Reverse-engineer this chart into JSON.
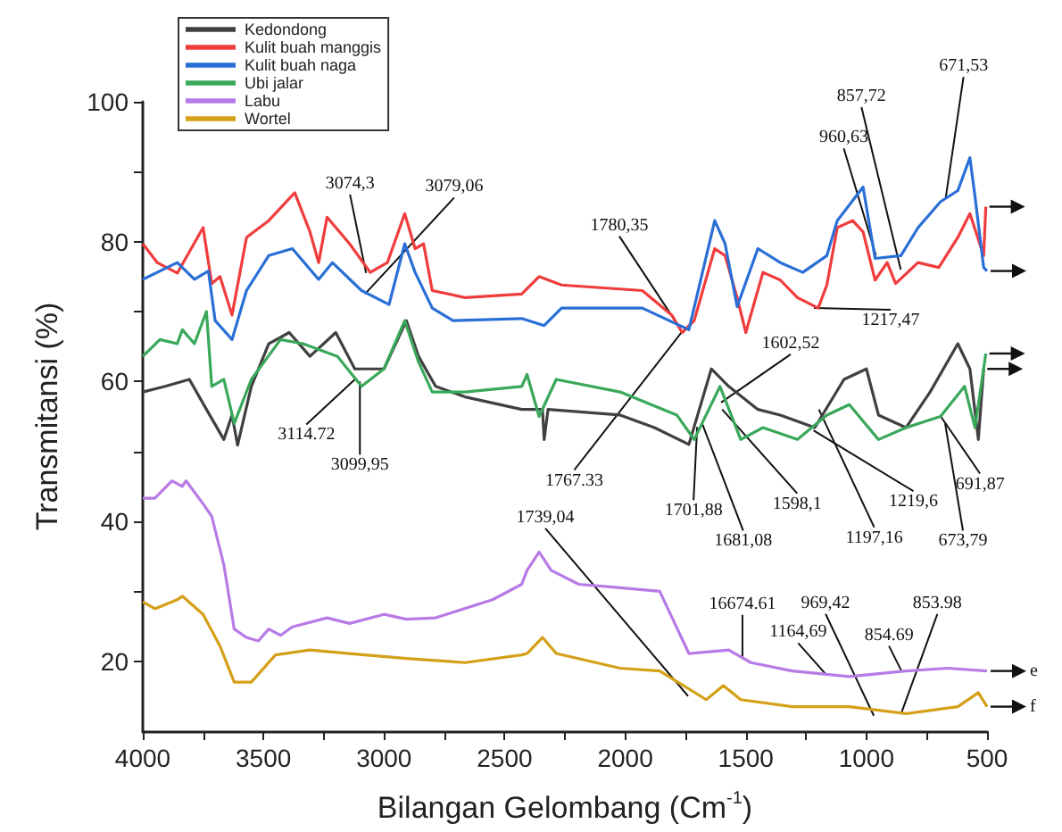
{
  "chart_data": {
    "type": "line",
    "xlabel": "Bilangan Gelombang (Cm$^{-1}$)",
    "ylabel": "Transmitansi (%)",
    "xlim": [
      4000,
      500
    ],
    "xticks": [
      4000,
      {
        "value": 3750,
        "label": null
      },
      3500,
      {
        "value": 3250,
        "label": null
      },
      3000,
      {
        "value": 2750,
        "label": null
      },
      2500,
      {
        "value": 2250,
        "label": null
      },
      2000,
      {
        "value": 1750,
        "label": null
      },
      1500,
      {
        "value": 1250,
        "label": null
      },
      1000,
      {
        "value": 750,
        "label": null
      },
      500
    ],
    "ylim": [
      10,
      100
    ],
    "yticks": [
      20,
      {
        "value": 30,
        "label": null
      },
      40,
      {
        "value": 50,
        "label": null
      },
      60,
      {
        "value": 70,
        "label": null
      },
      80,
      {
        "value": 90,
        "label": null
      },
      100
    ],
    "grid": false,
    "legend": "top left",
    "marker": "none",
    "line_style": "solid",
    "series": [
      {
        "name": "Kedondong",
        "color": "#404040",
        "x": [
          4000,
          3907,
          3807,
          3736,
          3664,
          3630,
          3607,
          3550,
          3478,
          3393,
          3307,
          3200,
          3121,
          3000,
          2907,
          2857,
          2786,
          2664,
          2429,
          2343,
          2336,
          2320,
          2021,
          1879,
          1736,
          1643,
          1571,
          1450,
          1357,
          1214,
          1093,
          1000,
          950,
          836,
          736,
          621,
          571,
          536,
          514
        ],
        "values": [
          58.5,
          59.3,
          60.3,
          56,
          51.7,
          55.2,
          50.9,
          59.3,
          65.4,
          67,
          63.6,
          67,
          61.8,
          61.8,
          68.7,
          63.6,
          59.3,
          57.8,
          56,
          56,
          51.7,
          56,
          55.2,
          53.4,
          51,
          61.8,
          59.3,
          56,
          55.2,
          53.4,
          60.3,
          61.8,
          55.2,
          53.4,
          58.5,
          65.4,
          61.8,
          51.7,
          61.8
        ]
      },
      {
        "name": "Kulit buah manggis",
        "color": "#f03c3c",
        "x": [
          4000,
          3940,
          3857,
          3750,
          3714,
          3680,
          3630,
          3570,
          3478,
          3370,
          3307,
          3271,
          3236,
          3143,
          3057,
          2986,
          2914,
          2871,
          2836,
          2800,
          2664,
          2429,
          2357,
          2264,
          1929,
          1807,
          1764,
          1714,
          1629,
          1586,
          1536,
          1500,
          1429,
          1357,
          1286,
          1200,
          1164,
          1121,
          1057,
          1014,
          964,
          914,
          879,
          786,
          700,
          621,
          571,
          514,
          505
        ],
        "values": [
          79.7,
          77,
          75.5,
          82,
          74,
          75,
          69.5,
          80.6,
          83,
          87,
          81.4,
          77,
          83.5,
          79.7,
          75.6,
          77,
          84,
          79,
          79.7,
          73,
          72,
          72.5,
          75,
          73.8,
          73,
          69.5,
          67,
          68.7,
          79,
          78,
          72,
          67,
          75.6,
          74.5,
          72,
          70.5,
          73.8,
          82,
          83,
          81.4,
          74.5,
          77,
          74,
          77,
          76.3,
          80.6,
          84,
          78,
          85
        ]
      },
      {
        "name": "Kulit buah naga",
        "color": "#2a6fd6",
        "x": [
          4000,
          3857,
          3786,
          3728,
          3700,
          3630,
          3570,
          3478,
          3380,
          3271,
          3214,
          3093,
          2979,
          2914,
          2871,
          2800,
          2714,
          2429,
          2336,
          2264,
          1929,
          1786,
          1736,
          1629,
          1586,
          1536,
          1450,
          1357,
          1264,
          1164,
          1121,
          1014,
          964,
          857,
          786,
          693,
          621,
          571,
          550,
          514,
          500
        ],
        "values": [
          74.6,
          77,
          74.6,
          75.8,
          68.7,
          66,
          73,
          78,
          79,
          74.6,
          77,
          73,
          71,
          79.7,
          75.6,
          70.5,
          68.7,
          69,
          68,
          70.5,
          70.5,
          68.2,
          67.4,
          83,
          79.7,
          70.7,
          79,
          77,
          75.6,
          78,
          83,
          87.8,
          77.6,
          78,
          82,
          85.7,
          87.3,
          92,
          86.5,
          76.3,
          75.8
        ]
      },
      {
        "name": "Ubi jalar",
        "color": "#3aa85a",
        "x": [
          4000,
          3929,
          3857,
          3836,
          3786,
          3736,
          3714,
          3664,
          3621,
          3550,
          3429,
          3336,
          3193,
          3093,
          3000,
          2914,
          2857,
          2800,
          2664,
          2429,
          2407,
          2357,
          2286,
          2021,
          1786,
          1714,
          1607,
          1521,
          1429,
          1286,
          1164,
          1071,
          950,
          836,
          693,
          593,
          550,
          505
        ],
        "values": [
          63.6,
          66,
          65.4,
          67.4,
          65.4,
          70,
          59.3,
          60.3,
          54,
          60.3,
          66,
          65.4,
          63.6,
          59.3,
          61.8,
          68.7,
          62.8,
          58.5,
          58.5,
          59.3,
          61,
          55,
          60.3,
          58.5,
          55.2,
          51.7,
          59.3,
          51.7,
          53.4,
          51.7,
          55.2,
          56.7,
          51.7,
          53.4,
          55,
          59.3,
          53.4,
          64
        ]
      },
      {
        "name": "Labu",
        "color": "#b77ae6",
        "x": [
          4000,
          3950,
          3879,
          3836,
          3821,
          3750,
          3714,
          3664,
          3621,
          3571,
          3521,
          3478,
          3429,
          3380,
          3236,
          3143,
          3000,
          2907,
          2786,
          2550,
          2429,
          2407,
          2357,
          2307,
          2193,
          2021,
          1857,
          1736,
          1571,
          1479,
          1307,
          1071,
          836,
          664,
          500
        ],
        "values": [
          43.3,
          43.3,
          45.8,
          45,
          45.8,
          42.5,
          40.7,
          33.8,
          24.6,
          23.4,
          22.9,
          24.6,
          23.7,
          24.9,
          26.2,
          25.4,
          26.7,
          26,
          26.2,
          28.8,
          31,
          33,
          35.6,
          33,
          31,
          30.5,
          30,
          21.1,
          21.6,
          19.8,
          18.6,
          17.8,
          18.6,
          19,
          18.6
        ]
      },
      {
        "name": "Wortel",
        "color": "#d4a017",
        "x": [
          4000,
          3950,
          3857,
          3836,
          3750,
          3679,
          3621,
          3550,
          3450,
          3307,
          3143,
          2907,
          2664,
          2429,
          2407,
          2343,
          2286,
          2021,
          1857,
          1664,
          1593,
          1521,
          1307,
          1071,
          836,
          621,
          536,
          500
        ],
        "values": [
          28.5,
          27.5,
          28.8,
          29.3,
          26.7,
          22.1,
          17,
          17,
          20.9,
          21.6,
          21.1,
          20.4,
          19.8,
          20.9,
          21.1,
          23.4,
          21.1,
          19,
          18.6,
          14.5,
          16.5,
          14.5,
          13.5,
          13.5,
          12.5,
          13.5,
          15.5,
          13.5
        ]
      }
    ],
    "annotations": [
      {
        "text": "3074,3",
        "x": 3074.3,
        "y": 75.5
      },
      {
        "text": "3079,06",
        "x": 3079.06,
        "y": 72.5
      },
      {
        "text": "3114.72",
        "x": 3114.72,
        "y": 60.5
      },
      {
        "text": "3099,95",
        "x": 3099.95,
        "y": 60
      },
      {
        "text": "1780,35",
        "x": 1780.35,
        "y": 68
      },
      {
        "text": "1767.33",
        "x": 1767.33,
        "y": 67
      },
      {
        "text": "1701,88",
        "x": 1701.88,
        "y": 53.5
      },
      {
        "text": "1681,08",
        "x": 1681.08,
        "y": 54
      },
      {
        "text": "1602,52",
        "x": 1602.52,
        "y": 57
      },
      {
        "text": "1598,1",
        "x": 1598.1,
        "y": 56
      },
      {
        "text": "1219,6",
        "x": 1219.6,
        "y": 53
      },
      {
        "text": "1197,16",
        "x": 1197.16,
        "y": 56
      },
      {
        "text": "1217,47",
        "x": 1217.47,
        "y": 70.5
      },
      {
        "text": "960,63",
        "x": 960.63,
        "y": 78
      },
      {
        "text": "857,72",
        "x": 857.72,
        "y": 76
      },
      {
        "text": "671,53",
        "x": 671.53,
        "y": 86.2
      },
      {
        "text": "691,87",
        "x": 691.87,
        "y": 55
      },
      {
        "text": "673,79",
        "x": 673.79,
        "y": 54
      },
      {
        "text": "1739,04",
        "x": 1739.04,
        "y": 15
      },
      {
        "text": "16674.61",
        "x": 1514,
        "y": 20.5
      },
      {
        "text": "1164,69",
        "x": 1164.69,
        "y": 18
      },
      {
        "text": "969,42",
        "x": 969.42,
        "y": 12.2
      },
      {
        "text": "854.69",
        "x": 854.69,
        "y": 18.6
      },
      {
        "text": "853.98",
        "x": 853.98,
        "y": 12.7
      },
      {
        "text": "e",
        "x": 500,
        "y": 18.6
      },
      {
        "text": "f",
        "x": 500,
        "y": 13.5
      }
    ]
  }
}
